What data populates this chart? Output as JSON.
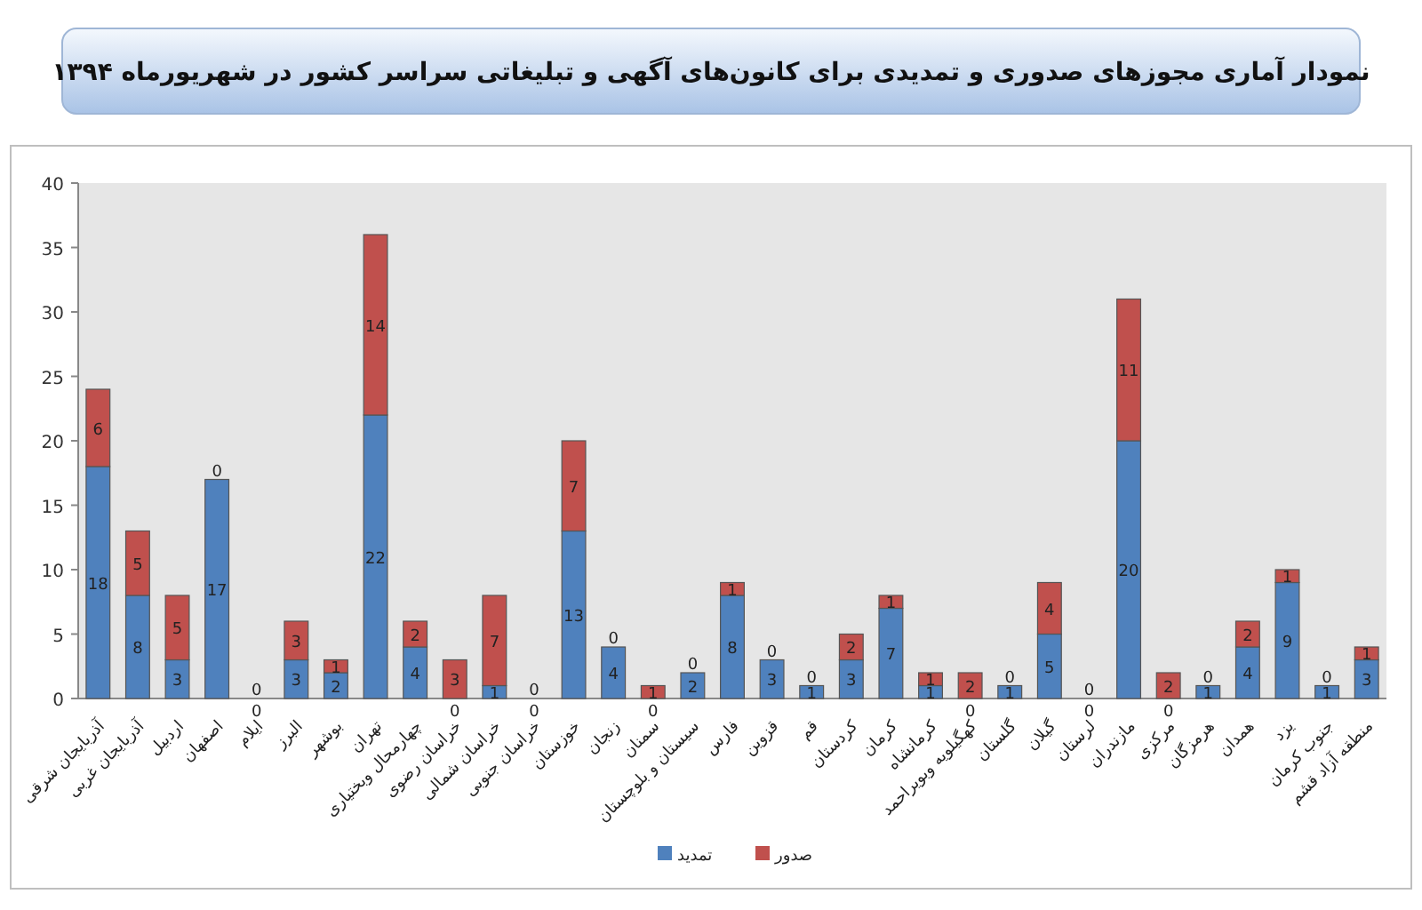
{
  "chart_data": {
    "type": "bar",
    "stacked": true,
    "title": "نمودار آماری مجوزهای صدوری و تمدیدی برای کانون‌های آگهی و تبلیغاتی سراسر کشور در شهریورماه ۱۳۹۴",
    "categories": [
      "آذربایجان شرقی",
      "آذربایجان غربی",
      "اردبیل",
      "اصفهان",
      "ایلام",
      "البرز",
      "بوشهر",
      "تهران",
      "چهارمحال وبختیاری",
      "خراسان رضوی",
      "خراسان شمالی",
      "خراسان جنوبی",
      "خوزستان",
      "زنجان",
      "سمنان",
      "سیستان و بلوچستان",
      "فارس",
      "قزوین",
      "قم",
      "کردستان",
      "کرمان",
      "کرمانشاه",
      "کهگیلویه وبویراحمد",
      "گلستان",
      "گیلان",
      "لرستان",
      "مازندران",
      "مرکزی",
      "هرمزگان",
      "همدان",
      "یزد",
      "جنوب کرمان",
      "منطقه آزاد قشم"
    ],
    "series": [
      {
        "name": "تمدید",
        "color": "#4f81bd",
        "values": [
          18,
          8,
          3,
          17,
          0,
          3,
          2,
          22,
          4,
          0,
          1,
          0,
          13,
          4,
          0,
          2,
          8,
          3,
          1,
          3,
          7,
          1,
          0,
          1,
          5,
          0,
          20,
          0,
          1,
          4,
          9,
          1,
          3
        ]
      },
      {
        "name": "صدور",
        "color": "#c0504d",
        "values": [
          6,
          5,
          5,
          0,
          0,
          3,
          1,
          14,
          2,
          3,
          7,
          0,
          7,
          0,
          1,
          0,
          1,
          0,
          0,
          2,
          1,
          1,
          2,
          0,
          4,
          0,
          11,
          2,
          0,
          2,
          1,
          0,
          1
        ]
      }
    ],
    "ylim": [
      0,
      40
    ],
    "yticks": [
      0,
      5,
      10,
      15,
      20,
      25,
      30,
      35,
      40
    ],
    "data_labels": true,
    "legend": "bottom",
    "grid": false
  }
}
